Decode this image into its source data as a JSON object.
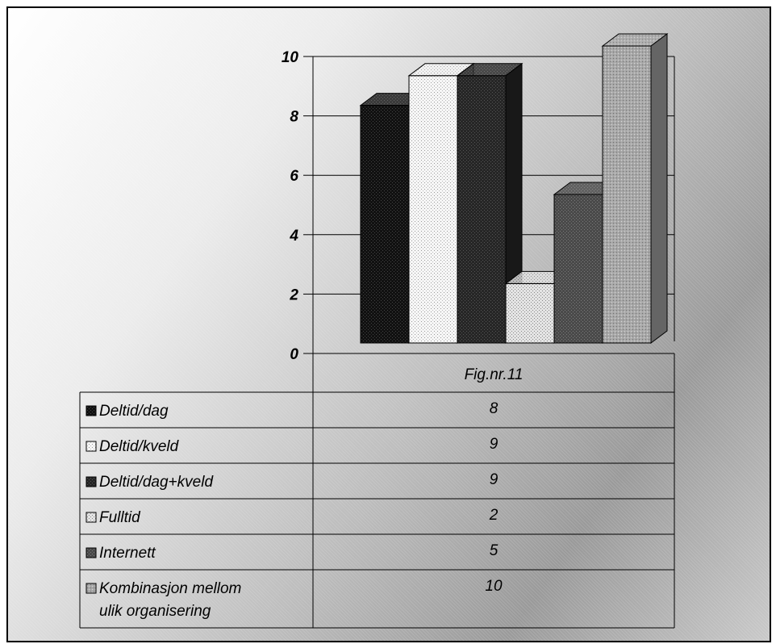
{
  "chart_data": {
    "type": "bar",
    "categories": [
      "Fig.nr.11"
    ],
    "series": [
      {
        "name": "Deltid/dag",
        "values": [
          8
        ]
      },
      {
        "name": "Deltid/kveld",
        "values": [
          9
        ]
      },
      {
        "name": "Deltid/dag+kveld",
        "values": [
          9
        ]
      },
      {
        "name": "Fulltid",
        "values": [
          2
        ]
      },
      {
        "name": "Internett",
        "values": [
          5
        ]
      },
      {
        "name": "Kombinasjon mellom ulik organisering",
        "values": [
          10
        ]
      }
    ],
    "series_display": [
      [
        "Deltid/dag"
      ],
      [
        "Deltid/kveld"
      ],
      [
        "Deltid/dag+kveld"
      ],
      [
        "Fulltid"
      ],
      [
        "Internett"
      ],
      [
        "Kombinasjon mellom",
        "ulik organisering"
      ]
    ],
    "yticks": [
      "0",
      "2",
      "4",
      "6",
      "8",
      "10"
    ],
    "ylim": [
      0,
      10
    ],
    "grid": true,
    "three_d": true,
    "legend": "data table below chart",
    "colors": [
      "#111111",
      "#f2f2f2",
      "#262626",
      "#d6d6d6",
      "#4e4e4e",
      "#9c9c9c"
    ],
    "title": "",
    "xlabel": "",
    "ylabel": ""
  }
}
